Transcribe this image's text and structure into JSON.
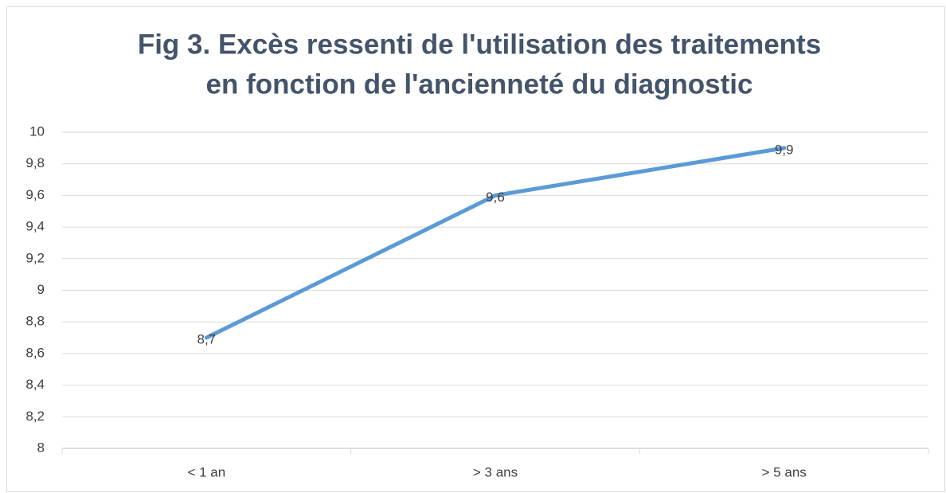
{
  "chart_data": {
    "type": "line",
    "title": [
      "Fig 3. Excès ressenti de l'utilisation des traitements",
      "en fonction de l'ancienneté du diagnostic"
    ],
    "categories": [
      "< 1 an",
      "> 3 ans",
      "> 5 ans"
    ],
    "series": [
      {
        "name": "Excès ressenti",
        "color": "#5b9bd5",
        "values": [
          8.7,
          9.6,
          9.9
        ],
        "value_labels": [
          "8,7",
          "9,6",
          "9,9"
        ]
      }
    ],
    "ylim": [
      8,
      10
    ],
    "yticks": [
      8,
      {
        "value": 8.2,
        "label": "8,2"
      },
      {
        "value": 8.4,
        "label": "8,4"
      },
      {
        "value": 8.6,
        "label": "8,6"
      },
      {
        "value": 8.8,
        "label": "8,8"
      },
      9,
      {
        "value": 9.2,
        "label": "9,2"
      },
      {
        "value": 9.4,
        "label": "9,4"
      },
      {
        "value": 9.6,
        "label": "9,6"
      },
      {
        "value": 9.8,
        "label": "9,8"
      },
      10
    ],
    "grid": true
  }
}
